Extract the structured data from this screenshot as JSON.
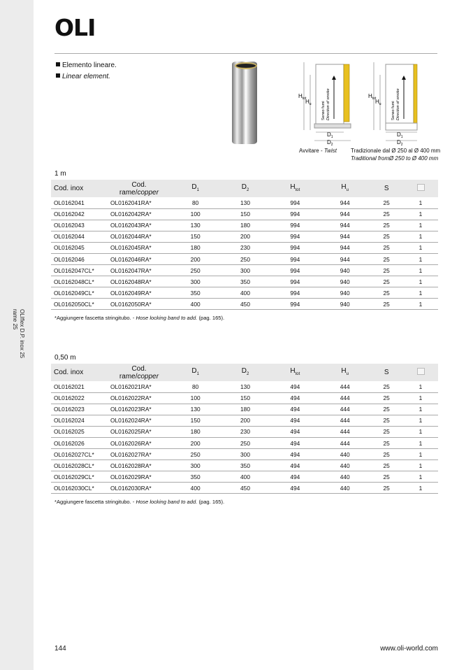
{
  "sidebar": {
    "line1": "OLIflex D.P. inox 25",
    "line2": "rame 25"
  },
  "logo": "OLI",
  "bullets": [
    "Elemento lineare.",
    "Linear element."
  ],
  "diagram": {
    "h_tot": "H",
    "h_tot_sub": "tot",
    "h_u": "H",
    "h_u_sub": "u",
    "d1": "D",
    "d1_sub": "1",
    "d2": "D",
    "d2_sub": "2",
    "arrow_label_it": "Senso fumi",
    "arrow_label_en": "Direction of smoke"
  },
  "captions": {
    "twist_it": "Avvitare - ",
    "twist_en": "Twist",
    "trad_it": "Tradizionale dal Ø 250 al Ø 400 mm",
    "trad_en": "Traditional fromØ 250 to Ø 400 mm"
  },
  "headers": {
    "inox": "Cod. inox",
    "copper1": "Cod.",
    "copper2": "rame/",
    "copper3": "copper",
    "d1": "D",
    "d1s": "1",
    "d2": "D",
    "d2s": "2",
    "htot": "H",
    "htots": "tot",
    "hu": "H",
    "hus": "u",
    "s": "S",
    "pack_icon": "box-icon"
  },
  "tables": [
    {
      "title": "1 m",
      "rows": [
        [
          "OL0162041",
          "OL0162041RA*",
          "80",
          "130",
          "994",
          "944",
          "25",
          "1"
        ],
        [
          "OL0162042",
          "OL0162042RA*",
          "100",
          "150",
          "994",
          "944",
          "25",
          "1"
        ],
        [
          "OL0162043",
          "OL0162043RA*",
          "130",
          "180",
          "994",
          "944",
          "25",
          "1"
        ],
        [
          "OL0162044",
          "OL0162044RA*",
          "150",
          "200",
          "994",
          "944",
          "25",
          "1"
        ],
        [
          "OL0162045",
          "OL0162045RA*",
          "180",
          "230",
          "994",
          "944",
          "25",
          "1"
        ],
        [
          "OL0162046",
          "OL0162046RA*",
          "200",
          "250",
          "994",
          "944",
          "25",
          "1"
        ],
        [
          "OL0162047CL*",
          "OL0162047RA*",
          "250",
          "300",
          "994",
          "940",
          "25",
          "1"
        ],
        [
          "OL0162048CL*",
          "OL0162048RA*",
          "300",
          "350",
          "994",
          "940",
          "25",
          "1"
        ],
        [
          "OL0162049CL*",
          "OL0162049RA*",
          "350",
          "400",
          "994",
          "940",
          "25",
          "1"
        ],
        [
          "OL0162050CL*",
          "OL0162050RA*",
          "400",
          "450",
          "994",
          "940",
          "25",
          "1"
        ]
      ],
      "note_it": "*Aggiungere fascetta stringitubo. - ",
      "note_en": "Hose locking band to add.",
      "note_page": " (pag. 165)."
    },
    {
      "title": "0,50 m",
      "rows": [
        [
          "OL0162021",
          "OL0162021RA*",
          "80",
          "130",
          "494",
          "444",
          "25",
          "1"
        ],
        [
          "OL0162022",
          "OL0162022RA*",
          "100",
          "150",
          "494",
          "444",
          "25",
          "1"
        ],
        [
          "OL0162023",
          "OL0162023RA*",
          "130",
          "180",
          "494",
          "444",
          "25",
          "1"
        ],
        [
          "OL0162024",
          "OL0162024RA*",
          "150",
          "200",
          "494",
          "444",
          "25",
          "1"
        ],
        [
          "OL0162025",
          "OL0162025RA*",
          "180",
          "230",
          "494",
          "444",
          "25",
          "1"
        ],
        [
          "OL0162026",
          "OL0162026RA*",
          "200",
          "250",
          "494",
          "444",
          "25",
          "1"
        ],
        [
          "OL0162027CL*",
          "OL0162027RA*",
          "250",
          "300",
          "494",
          "440",
          "25",
          "1"
        ],
        [
          "OL0162028CL*",
          "OL0162028RA*",
          "300",
          "350",
          "494",
          "440",
          "25",
          "1"
        ],
        [
          "OL0162029CL*",
          "OL0162029RA*",
          "350",
          "400",
          "494",
          "440",
          "25",
          "1"
        ],
        [
          "OL0162030CL*",
          "OL0162030RA*",
          "400",
          "450",
          "494",
          "440",
          "25",
          "1"
        ]
      ],
      "note_it": "*Aggiungere fascetta stringitubo. - ",
      "note_en": "Hose locking band to add.",
      "note_page": " (pag. 165)."
    }
  ],
  "footer": {
    "page": "144",
    "site": "www.oli-world.com"
  }
}
